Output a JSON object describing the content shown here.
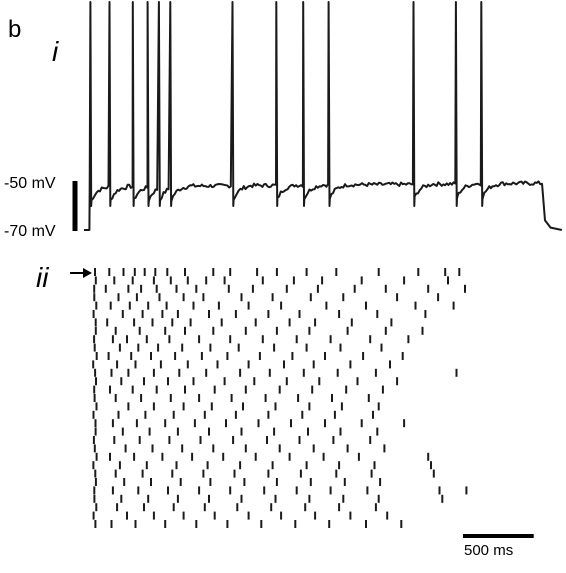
{
  "panel_label": "b",
  "subpanel_i": "i",
  "subpanel_ii": "ii",
  "mv_label_high": "-50 mV",
  "mv_label_low": "-70 mV",
  "time_scale_label": "500 ms",
  "trace_color": "#1a1a1a",
  "chart_data": [
    {
      "type": "line",
      "x_unit": "ms",
      "y_unit": "mV",
      "xlim": [
        0,
        3380
      ],
      "ylim": [
        -73,
        40
      ],
      "stimulus_on_ms": 40,
      "stimulus_off_ms": 3240,
      "resting_mv": -70,
      "plateau_mv": -52,
      "spike_peak_mv": 25,
      "spike_times_ms": [
        45,
        180,
        345,
        450,
        530,
        610,
        1050,
        1360,
        1550,
        1730,
        2330,
        2630,
        2810
      ],
      "y_tick_labels": [
        "-50 mV",
        "-70 mV"
      ],
      "scale_bar_mv": 20
    },
    {
      "type": "scatter",
      "subtype": "raster",
      "x_unit": "ms",
      "trials": 31,
      "marked_trial": 1,
      "scale_bar_ms": 500,
      "scale_bar_label": "500 ms",
      "stimulus_on_ms": 40,
      "events": [
        {
          "trial": 1,
          "spikes": [
            55,
            165,
            265,
            345,
            415,
            490,
            575,
            700,
            900,
            1020,
            1210,
            1350,
            1560,
            1770,
            2070,
            2350,
            2540,
            2640
          ]
        },
        {
          "trial": 2,
          "spikes": [
            52,
            200,
            330,
            480,
            600,
            720,
            850,
            980,
            1250,
            1470,
            1670,
            1950,
            2250,
            2560
          ]
        },
        {
          "trial": 3,
          "spikes": [
            58,
            140,
            300,
            390,
            500,
            640,
            780,
            1010,
            1180,
            1420,
            1640,
            1900,
            2120,
            2420,
            2680
          ]
        },
        {
          "trial": 4,
          "spikes": [
            50,
            230,
            360,
            520,
            690,
            830,
            1100,
            1320,
            1590,
            1820,
            2200,
            2490
          ]
        },
        {
          "trial": 5,
          "spikes": [
            56,
            175,
            310,
            440,
            570,
            760,
            940,
            1150,
            1380,
            1700,
            1980,
            2330,
            2600
          ]
        },
        {
          "trial": 6,
          "spikes": [
            54,
            260,
            400,
            540,
            650,
            870,
            1060,
            1290,
            1510,
            1790,
            2060,
            2400
          ]
        },
        {
          "trial": 7,
          "spikes": [
            60,
            150,
            340,
            470,
            610,
            740,
            960,
            1200,
            1440,
            1620,
            1880,
            2160
          ]
        },
        {
          "trial": 8,
          "spikes": [
            52,
            210,
            380,
            560,
            700,
            900,
            1130,
            1350,
            1580,
            1850,
            2120,
            2380
          ]
        },
        {
          "trial": 9,
          "spikes": [
            57,
            190,
            290,
            430,
            590,
            800,
            1020,
            1250,
            1490,
            1730,
            2010,
            2280
          ]
        },
        {
          "trial": 10,
          "spikes": [
            53,
            240,
            370,
            510,
            680,
            880,
            1080,
            1330,
            1560,
            1800,
            2090
          ]
        },
        {
          "trial": 11,
          "spikes": [
            59,
            160,
            320,
            460,
            630,
            820,
            1000,
            1230,
            1460,
            1690,
            1960,
            2240
          ]
        },
        {
          "trial": 12,
          "spikes": [
            51,
            220,
            350,
            530,
            720,
            930,
            1150,
            1400,
            1610,
            1870,
            2150
          ]
        },
        {
          "trial": 13,
          "spikes": [
            56,
            180,
            300,
            480,
            660,
            850,
            1090,
            1300,
            1540,
            1780,
            2050,
            2620
          ]
        },
        {
          "trial": 14,
          "spikes": [
            54,
            250,
            410,
            580,
            760,
            980,
            1190,
            1420,
            1650,
            1920,
            2200
          ]
        },
        {
          "trial": 15,
          "spikes": [
            58,
            170,
            330,
            500,
            700,
            910,
            1130,
            1370,
            1600,
            1840,
            2100
          ]
        },
        {
          "trial": 16,
          "spikes": [
            52,
            210,
            390,
            600,
            800,
            1030,
            1270,
            1500,
            1740,
            2000
          ]
        },
        {
          "trial": 17,
          "spikes": [
            57,
            300,
            480,
            690,
            890,
            1110,
            1340,
            1580,
            1810,
            2070
          ]
        },
        {
          "trial": 18,
          "spikes": [
            53,
            230,
            420,
            620,
            840,
            1060,
            1290,
            1530,
            1760,
            2030
          ]
        },
        {
          "trial": 19,
          "spikes": [
            59,
            190,
            360,
            560,
            770,
            990,
            1220,
            1450,
            1690,
            1950,
            2250
          ]
        },
        {
          "trial": 20,
          "spikes": [
            51,
            260,
            450,
            650,
            870,
            1100,
            1330,
            1570,
            1800,
            2060
          ]
        },
        {
          "trial": 21,
          "spikes": [
            56,
            200,
            380,
            590,
            810,
            1040,
            1280,
            1510,
            1750,
            2010
          ]
        },
        {
          "trial": 22,
          "spikes": [
            54,
            280,
            470,
            680,
            900,
            1130,
            1370,
            1610,
            1850,
            2110
          ]
        },
        {
          "trial": 23,
          "spikes": [
            58,
            170,
            340,
            540,
            750,
            970,
            1200,
            1440,
            1680,
            1930,
            2420
          ]
        },
        {
          "trial": 24,
          "spikes": [
            52,
            240,
            430,
            640,
            860,
            1090,
            1320,
            1560,
            1790,
            2040,
            2440
          ]
        },
        {
          "trial": 25,
          "spikes": [
            57,
            210,
            400,
            610,
            830,
            1050,
            1290,
            1520,
            1770,
            2020,
            2460
          ]
        },
        {
          "trial": 26,
          "spikes": [
            53,
            270,
            460,
            670,
            880,
            1120,
            1350,
            1590,
            1830,
            2080
          ]
        },
        {
          "trial": 27,
          "spikes": [
            59,
            190,
            370,
            580,
            800,
            1020,
            1260,
            1490,
            1730,
            1990,
            2500,
            2690
          ]
        },
        {
          "trial": 28,
          "spikes": [
            51,
            250,
            440,
            650,
            870,
            1100,
            1340,
            1580,
            1820,
            2070,
            2520
          ]
        },
        {
          "trial": 29,
          "spikes": [
            56,
            220,
            410,
            620,
            840,
            1070,
            1310,
            1550,
            1790,
            2050
          ]
        },
        {
          "trial": 30,
          "spikes": [
            54,
            290,
            480,
            690,
            910,
            1150,
            1380,
            1620,
            1870,
            2130
          ]
        },
        {
          "trial": 31,
          "spikes": [
            58,
            180,
            350,
            560,
            780,
            1000,
            1240,
            1480,
            1720,
            1980,
            2230
          ]
        }
      ]
    }
  ]
}
